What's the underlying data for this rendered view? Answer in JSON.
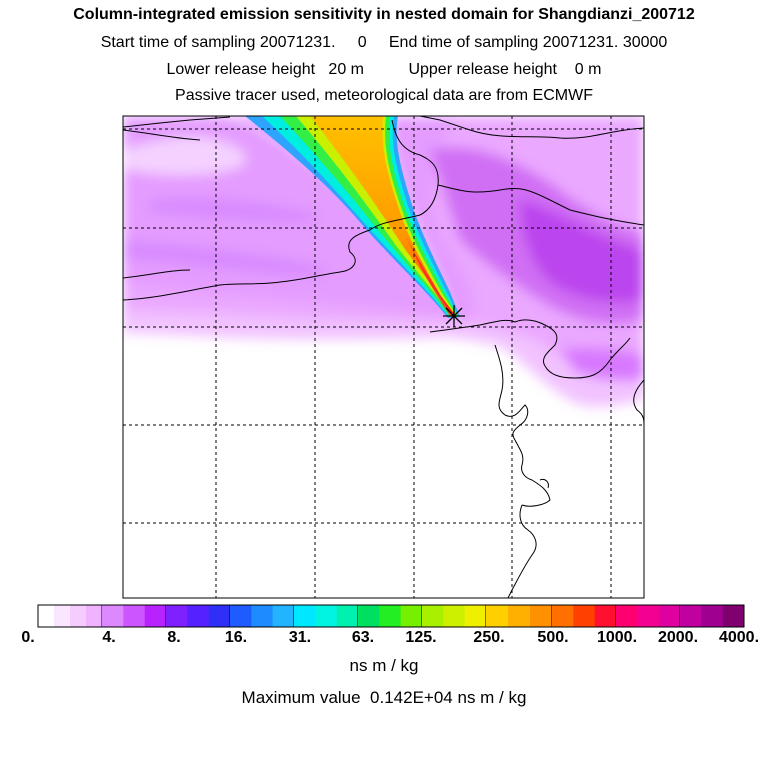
{
  "header": {
    "title": "Column-integrated emission sensitivity in nested domain for Shangdianzi_200712",
    "sampling_start_label": "Start time of sampling",
    "sampling_start_value": "20071231.     0",
    "sampling_end_label": "End time of sampling",
    "sampling_end_value": "20071231. 30000",
    "lower_height_label": "Lower release height",
    "lower_height_value": "20 m",
    "upper_height_label": "Upper release height",
    "upper_height_value": "0 m",
    "tracer_note": "Passive tracer used, meteorological data are from ECMWF"
  },
  "chart_data": {
    "type": "heatmap",
    "title": "Column-integrated emission sensitivity in nested domain for Shangdianzi_200712",
    "units": "ns m / kg",
    "scale": "logarithmic",
    "colorbar_tick_labels": [
      "0.",
      "4.",
      "8.",
      "16.",
      "31.",
      "63.",
      "125.",
      "250.",
      "500.",
      "1000.",
      "2000.",
      "4000."
    ],
    "colorbar_colors": [
      [
        "#ffffff",
        "#fbe6ff",
        "#f6ccff",
        "#efb3ff"
      ],
      [
        "#dd88ff",
        "#cc55ff",
        "#b822ff"
      ],
      [
        "#7f20ff",
        "#5522ff",
        "#2f2ff8"
      ],
      [
        "#1e5cff",
        "#1e8cff",
        "#22b4ff"
      ],
      [
        "#00e8ff",
        "#00f4e0",
        "#00f0b0"
      ],
      [
        "#00e060",
        "#22ee22",
        "#77f000"
      ],
      [
        "#a8f000",
        "#ccf000",
        "#eef000"
      ],
      [
        "#ffd000",
        "#ffb000",
        "#ff9000"
      ],
      [
        "#ff7000",
        "#ff4000",
        "#ff1030"
      ],
      [
        "#ff0070",
        "#f40090",
        "#e000a0"
      ],
      [
        "#c000a0",
        "#a00090",
        "#800070"
      ]
    ],
    "maximum_value": 1420,
    "receptor": "Shangdianzi",
    "grid_lines": "dashed"
  },
  "footer": {
    "units_label": "ns m / kg",
    "max_label": "Maximum value",
    "max_value_text": "0.142E+04 ns m / kg"
  }
}
